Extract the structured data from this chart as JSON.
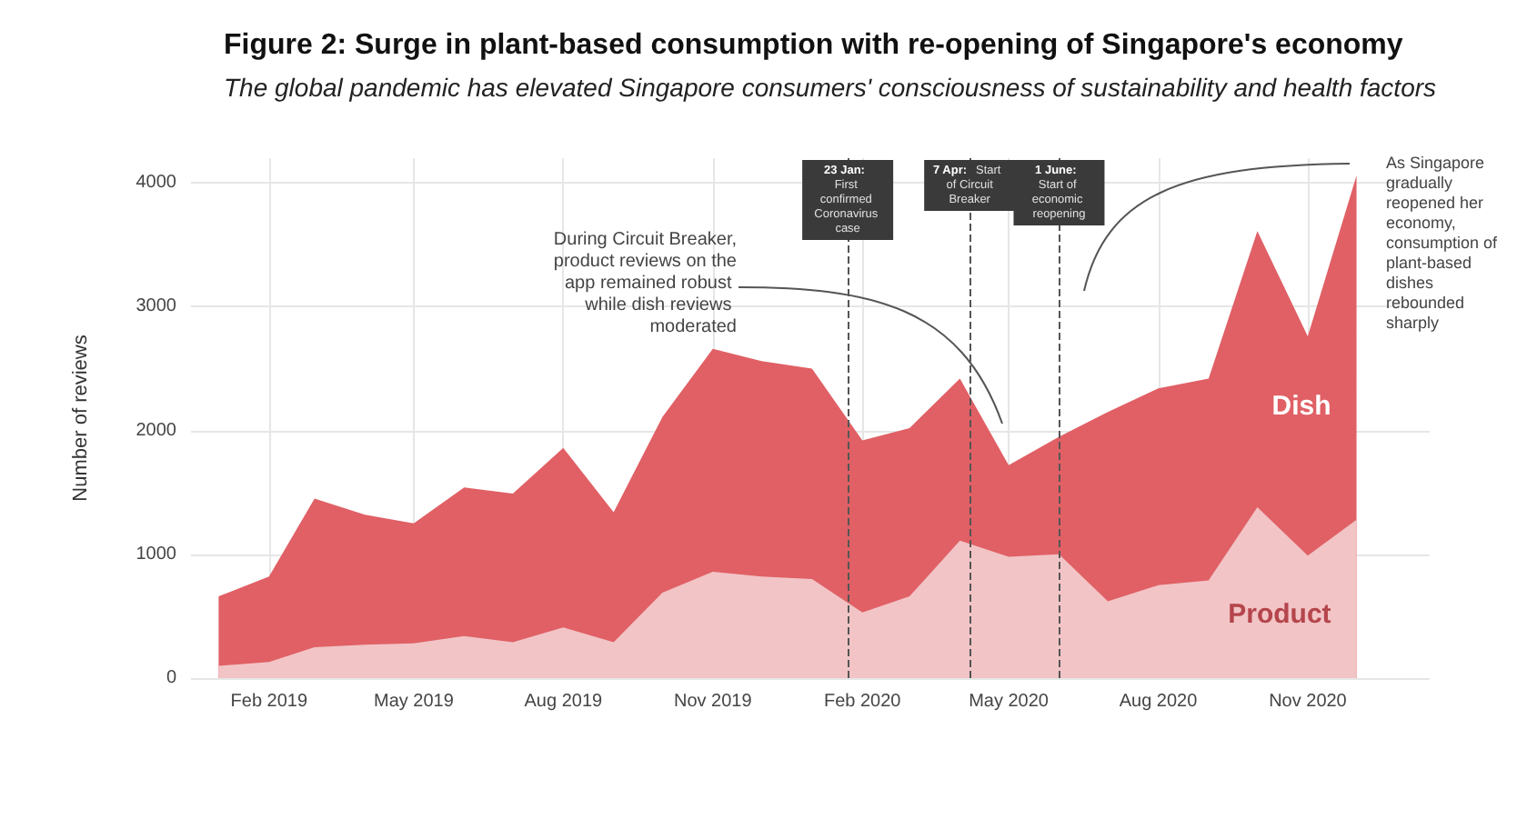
{
  "chart_data": {
    "type": "area",
    "stacked": true,
    "title": "Figure 2: Surge in plant-based consumption with re-opening of Singapore's economy",
    "subtitle": "The global pandemic has elevated Singapore consumers' consciousness of sustainability and health factors",
    "ylabel": "Number of reviews",
    "x": [
      "2019-01",
      "2019-02",
      "2019-03",
      "2019-04",
      "2019-05",
      "2019-06",
      "2019-07",
      "2019-08",
      "2019-09",
      "2019-10",
      "2019-11",
      "2019-12",
      "2020-01",
      "2020-02",
      "2020-03",
      "2020-04",
      "2020-05",
      "2020-06",
      "2020-07",
      "2020-08",
      "2020-09",
      "2020-10",
      "2020-11",
      "2020-12"
    ],
    "series": [
      {
        "name": "Product",
        "color": "#f2c4c6",
        "values": [
          100,
          130,
          250,
          270,
          280,
          340,
          290,
          410,
          290,
          690,
          860,
          820,
          800,
          530,
          660,
          1110,
          980,
          1000,
          620,
          750,
          790,
          1380,
          990,
          1280
        ]
      },
      {
        "name": "Dish",
        "color": "#e06065",
        "values": [
          560,
          690,
          1200,
          1050,
          970,
          1200,
          1200,
          1450,
          1050,
          1420,
          1800,
          1740,
          1700,
          1390,
          1360,
          1310,
          740,
          950,
          1530,
          1590,
          1630,
          2230,
          1770,
          2780
        ]
      }
    ],
    "xlim": [
      "2018-12-15",
      "2021-01-15"
    ],
    "xticks": [
      {
        "value": "2019-02",
        "label": "Feb 2019"
      },
      {
        "value": "2019-05",
        "label": "May 2019"
      },
      {
        "value": "2019-08",
        "label": "Aug 2019"
      },
      {
        "value": "2019-11",
        "label": "Nov 2019"
      },
      {
        "value": "2020-02",
        "label": "Feb 2020"
      },
      {
        "value": "2020-05",
        "label": "May 2020"
      },
      {
        "value": "2020-08",
        "label": "Aug 2020"
      },
      {
        "value": "2020-11",
        "label": "Nov 2020"
      }
    ],
    "ylim": [
      0,
      4200
    ],
    "yticks": [
      0,
      1000,
      2000,
      3000,
      4000
    ],
    "grid": true,
    "legend": false,
    "marker": "none",
    "ref_lines": [
      {
        "axis": "x",
        "value": "2020-01-23",
        "label": "23 Jan: First confirmed Coronavirus case",
        "color": "#555555",
        "line_style": "dashed"
      },
      {
        "axis": "x",
        "value": "2020-04-07",
        "label": "7 Apr: Start of Circuit Breaker",
        "color": "#555555",
        "line_style": "dashed"
      },
      {
        "axis": "x",
        "value": "2020-06-01",
        "label": "1 June: Start of economic reopening",
        "color": "#555555",
        "line_style": "dashed"
      }
    ],
    "annotations": [
      "During Circuit Breaker, product reviews on the app remained robust while dish reviews moderated",
      "As Singapore gradually reopened her economy, consumption of plant-based dishes rebounded sharply"
    ]
  }
}
